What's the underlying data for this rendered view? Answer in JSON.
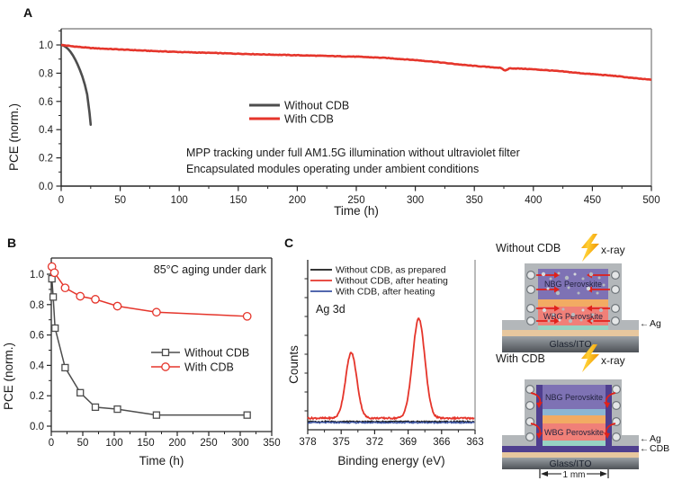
{
  "figure": {
    "background": "#ffffff",
    "panel_labels": {
      "a": "A",
      "b": "B",
      "c": "C"
    }
  },
  "icons": {
    "pointer_arrow": "←",
    "xray": "lightning-bolt"
  },
  "colors": {
    "red": "#e5352b",
    "dark_gray": "#4d4d4d",
    "black": "#1a1a1a",
    "blue": "#3a53a2",
    "axis": "#262626",
    "frame_border_gray": "#8c8c8c",
    "schematic": {
      "frame": "#b3b7ba",
      "nbg": "#7e72b4",
      "wbg": "#f08078",
      "orange": "#f2ab63",
      "teal": "#97d3c3",
      "light_blue": "#8cb6d3",
      "cdb": "#4f3f8f",
      "tan": "#e7c79e",
      "glass_top": "#9aa0a5",
      "glass_bottom": "#4e5257",
      "bolt_light": "#ffcf33",
      "bolt_dark": "#ef9300",
      "dot": "#b6bcc0",
      "circle_stroke": "#70767b",
      "arrow_red": "#e0211a"
    }
  },
  "chart_data": [
    {
      "id": "A",
      "type": "line",
      "xlabel": "Time (h)",
      "ylabel": "PCE (norm.)",
      "xlim": [
        0,
        500
      ],
      "ylim": [
        0,
        1.11
      ],
      "xticks": [
        0,
        50,
        100,
        150,
        200,
        250,
        300,
        350,
        400,
        450,
        500
      ],
      "yticks": [
        0.0,
        0.2,
        0.4,
        0.6,
        0.8,
        1.0
      ],
      "x_minor_step": 25,
      "y_minor_step": 0.1,
      "grid": false,
      "legend_position": "center",
      "annotations": [
        "MPP tracking under full AM1.5G illumination without ultraviolet filter",
        "Encapsulated modules operating under ambient conditions"
      ],
      "series": [
        {
          "name": "Without CDB",
          "color": "#4d4d4d",
          "linewidth": 2.6,
          "x": [
            0,
            2,
            4,
            6,
            8,
            10,
            12,
            14,
            16,
            18,
            20,
            22,
            24,
            25
          ],
          "y": [
            1.0,
            0.995,
            0.985,
            0.97,
            0.95,
            0.925,
            0.895,
            0.86,
            0.82,
            0.775,
            0.72,
            0.65,
            0.52,
            0.435
          ]
        },
        {
          "name": "With CDB",
          "color": "#e5352b",
          "linewidth": 2.6,
          "noise": 0.004,
          "x": [
            0,
            10,
            25,
            50,
            75,
            100,
            125,
            150,
            175,
            200,
            225,
            250,
            275,
            300,
            315,
            330,
            345,
            360,
            372,
            376,
            380,
            395,
            410,
            425,
            440,
            455,
            470,
            485,
            500
          ],
          "y": [
            1.0,
            0.99,
            0.978,
            0.968,
            0.958,
            0.95,
            0.944,
            0.938,
            0.932,
            0.927,
            0.922,
            0.917,
            0.908,
            0.893,
            0.882,
            0.868,
            0.855,
            0.845,
            0.838,
            0.818,
            0.835,
            0.83,
            0.822,
            0.812,
            0.8,
            0.79,
            0.78,
            0.765,
            0.753
          ]
        }
      ]
    },
    {
      "id": "B",
      "type": "line",
      "xlabel": "Time (h)",
      "ylabel": "PCE (norm.)",
      "xlim": [
        0,
        350
      ],
      "ylim": [
        -0.04,
        1.11
      ],
      "xticks": [
        0,
        50,
        100,
        150,
        200,
        250,
        300,
        350
      ],
      "yticks": [
        0.0,
        0.2,
        0.4,
        0.6,
        0.8,
        1.0
      ],
      "x_minor_step": 25,
      "y_minor_step": 0.1,
      "grid": false,
      "annotation": "85°C aging under dark",
      "series": [
        {
          "name": "Without CDB",
          "color": "#4d4d4d",
          "marker": "square",
          "linewidth": 1.5,
          "x": [
            1,
            3,
            6,
            22,
            46,
            70,
            105,
            167,
            311
          ],
          "y": [
            0.97,
            0.85,
            0.645,
            0.385,
            0.22,
            0.125,
            0.112,
            0.073,
            0.073
          ]
        },
        {
          "name": "With CDB",
          "color": "#e5352b",
          "marker": "circle",
          "linewidth": 1.5,
          "x": [
            1,
            5,
            22,
            46,
            70,
            105,
            167,
            311
          ],
          "y": [
            1.05,
            1.01,
            0.91,
            0.855,
            0.835,
            0.79,
            0.75,
            0.723
          ]
        }
      ]
    },
    {
      "id": "C",
      "type": "line",
      "xlabel": "Binding energy (eV)",
      "ylabel": "Counts",
      "x_axis_reversed": true,
      "xlim": [
        378,
        363
      ],
      "xticks": [
        378,
        375,
        372,
        369,
        366,
        363
      ],
      "annotation": "Ag 3d",
      "series": [
        {
          "name": "Without CDB, as prepared",
          "color": "#1a1a1a",
          "baseline": 0.048,
          "noise": 0.0075,
          "peaks": []
        },
        {
          "name": "Without CDB, after heating",
          "color": "#e5352b",
          "baseline": 0.068,
          "noise": 0.009,
          "peaks": [
            {
              "center_eV": 374.1,
              "sigma_eV": 0.5,
              "amplitude": 0.385
            },
            {
              "center_eV": 368.05,
              "sigma_eV": 0.55,
              "amplitude": 0.585
            }
          ]
        },
        {
          "name": "With CDB, after heating",
          "color": "#3a53a2",
          "baseline": 0.042,
          "noise": 0.0075,
          "peaks": []
        }
      ]
    }
  ],
  "schematics": {
    "without_cdb": {
      "title": "Without CDB",
      "xray_label": "x-ray",
      "nbg_label": "NBG Perovskite",
      "wbg_label": "WBG Perovskite",
      "substrate_label": "Glass/ITO",
      "ag_label": "Ag"
    },
    "with_cdb": {
      "title": "With CDB",
      "xray_label": "x-ray",
      "nbg_label": "NBG Perovskite",
      "wbg_label": "WBG Perovskite",
      "substrate_label": "Glass/ITO",
      "ag_label": "Ag",
      "cdb_label": "CDB",
      "scale_label": "1 mm"
    }
  }
}
